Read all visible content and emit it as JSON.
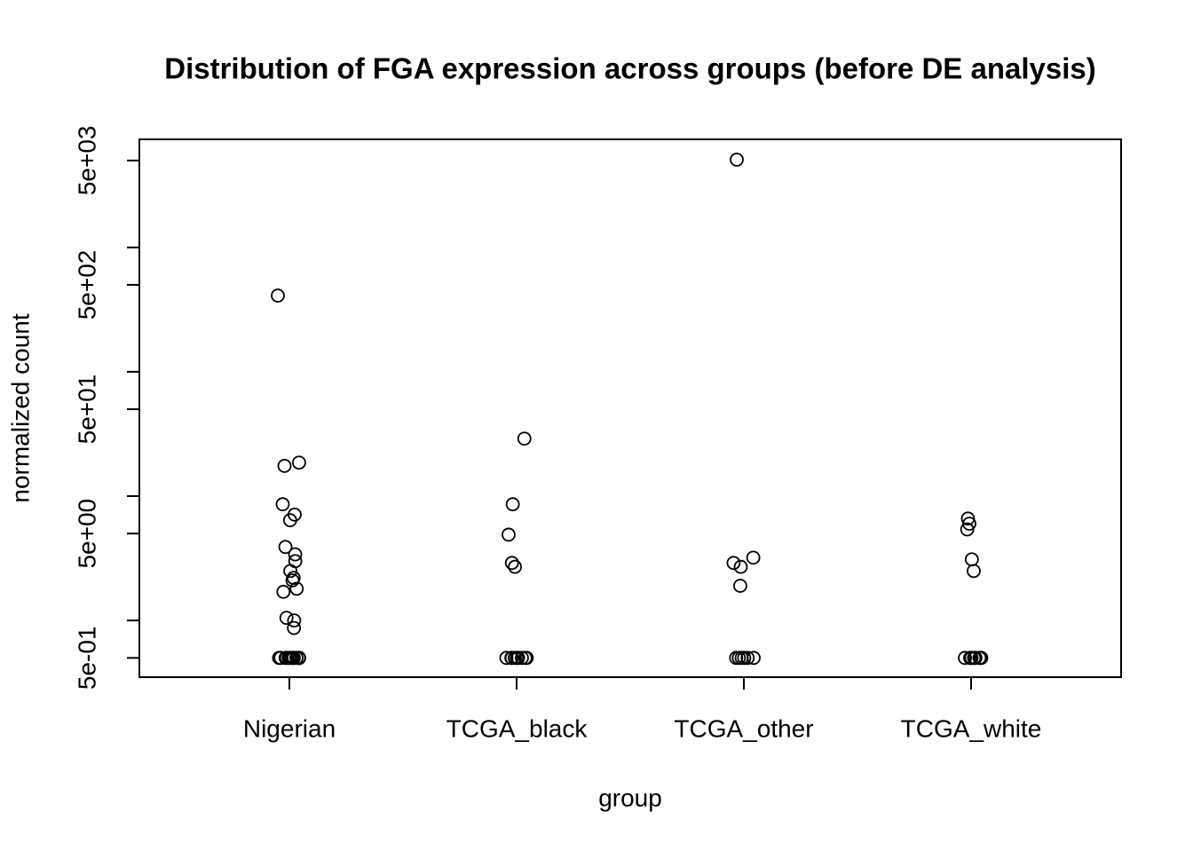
{
  "chart_data": {
    "type": "strip",
    "title": "Distribution of FGA expression across groups (before DE analysis)",
    "x_label": "group",
    "y_label": "normalized count",
    "categories": [
      "Nigerian",
      "TCGA_black",
      "TCGA_other",
      "TCGA_white"
    ],
    "values": [
      [
        410,
        18.6,
        17.5,
        8.6,
        7.1,
        6.4,
        3.9,
        3.4,
        3.0,
        2.5,
        2.2,
        2.1,
        1.8,
        1.7,
        1.05,
        1.0,
        0.87,
        0.5,
        0.5,
        0.5,
        0.5,
        0.5,
        0.5,
        0.5,
        0.5,
        0.5,
        0.5,
        0.5,
        0.5,
        0.5,
        0.5,
        0.5
      ],
      [
        29,
        8.6,
        4.9,
        2.9,
        2.7,
        0.5,
        0.5,
        0.5,
        0.5,
        0.5,
        0.5,
        0.5,
        0.5,
        0.5,
        0.5
      ],
      [
        5080,
        3.2,
        2.9,
        2.7,
        1.9,
        0.5,
        0.5,
        0.5,
        0.5,
        0.5,
        0.5
      ],
      [
        6.6,
        6.0,
        5.4,
        3.1,
        2.5,
        0.5,
        0.5,
        0.5,
        0.5,
        0.5,
        0.5,
        0.5,
        0.5,
        0.5,
        0.5
      ]
    ],
    "color": "#000000",
    "log_y": true,
    "ylim": [
      0.35,
      7400
    ],
    "yticks": [
      {
        "value": 0.5,
        "label": "5e-01"
      },
      {
        "value": 5,
        "label": "5e+00"
      },
      {
        "value": 50,
        "label": "5e+01"
      },
      {
        "value": 500,
        "label": "5e+02"
      },
      {
        "value": 5000,
        "label": "5e+03"
      }
    ],
    "yminor_ticks": [
      1,
      10,
      100,
      1000
    ]
  }
}
